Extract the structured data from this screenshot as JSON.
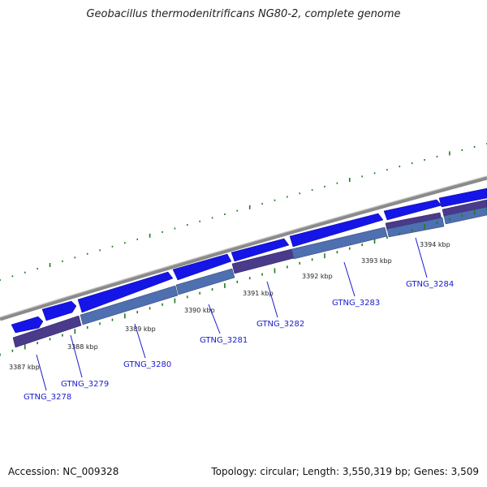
{
  "title": "Geobacillus thermodenitrificans NG80-2, complete genome",
  "footer": {
    "accession": "Accession: NC_009328",
    "summary": "Topology: circular; Length: 3,550,319 bp; Genes: 3,509"
  },
  "colors": {
    "backbone": "#8a8a8a",
    "forward_gene": "#1515e8",
    "reverse_gene": "#4e6fb0",
    "other_gene": "#4a3a8a",
    "gc_ticks": "#1f7a1f",
    "label": "#1a1ad0"
  },
  "kbp_ticks": [
    "3387 kbp",
    "3388 kbp",
    "3389 kbp",
    "3390 kbp",
    "3391 kbp",
    "3392 kbp",
    "3393 kbp",
    "3394 kbp"
  ],
  "gene_labels": [
    "GTNG_3278",
    "GTNG_3279",
    "GTNG_3280",
    "GTNG_3281",
    "GTNG_3282",
    "GTNG_3283",
    "GTNG_3284"
  ]
}
